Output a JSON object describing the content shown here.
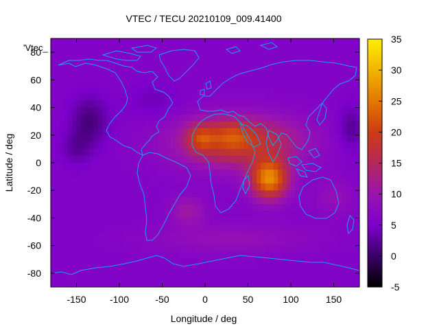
{
  "chart_data": {
    "type": "heatmap",
    "title": "VTEC / TECU 20210109_009.41400",
    "xlabel": "Longitude / deg",
    "ylabel": "Latitude / deg",
    "series_label": "'Vtec_",
    "xlim": [
      -180,
      180
    ],
    "ylim": [
      -90,
      90
    ],
    "x_ticks": [
      -150,
      -100,
      -50,
      0,
      50,
      100,
      150
    ],
    "y_ticks": [
      -80,
      -60,
      -40,
      -20,
      0,
      20,
      40,
      60,
      80
    ],
    "colorbar": {
      "range": [
        -5,
        35
      ],
      "ticks": [
        -5,
        0,
        5,
        10,
        15,
        20,
        25,
        30,
        35
      ],
      "colors": [
        "#000000",
        "#3c0068",
        "#7c00cc",
        "#9a14b0",
        "#b42858",
        "#cc3c14",
        "#e27800",
        "#f2b400",
        "#ffee00"
      ]
    },
    "coastline_color": "#1ba0f0",
    "features": [
      {
        "lon": 40,
        "lat": 15,
        "width": 70,
        "height": 18,
        "value": 13
      },
      {
        "lon": 75,
        "lat": -12,
        "width": 22,
        "height": 14,
        "value": 20
      },
      {
        "lon": -5,
        "lat": 18,
        "width": 16,
        "height": 10,
        "value": 8
      },
      {
        "lon": 30,
        "lat": 20,
        "width": 22,
        "height": 10,
        "value": 5
      },
      {
        "lon": -20,
        "lat": -35,
        "width": 20,
        "height": 10,
        "value": 5
      },
      {
        "lon": 30,
        "lat": -55,
        "width": 90,
        "height": 10,
        "value": 3
      },
      {
        "lon": 150,
        "lat": -25,
        "width": 22,
        "height": 12,
        "value": 3
      },
      {
        "lon": -135,
        "lat": 30,
        "width": 22,
        "height": 18,
        "value": -5
      },
      {
        "lon": -150,
        "lat": 10,
        "width": 18,
        "height": 12,
        "value": -3
      },
      {
        "lon": 170,
        "lat": 25,
        "width": 14,
        "height": 15,
        "value": -4
      },
      {
        "lon": -60,
        "lat": 45,
        "width": 30,
        "height": 12,
        "value": -2
      }
    ],
    "background_value": 6
  }
}
